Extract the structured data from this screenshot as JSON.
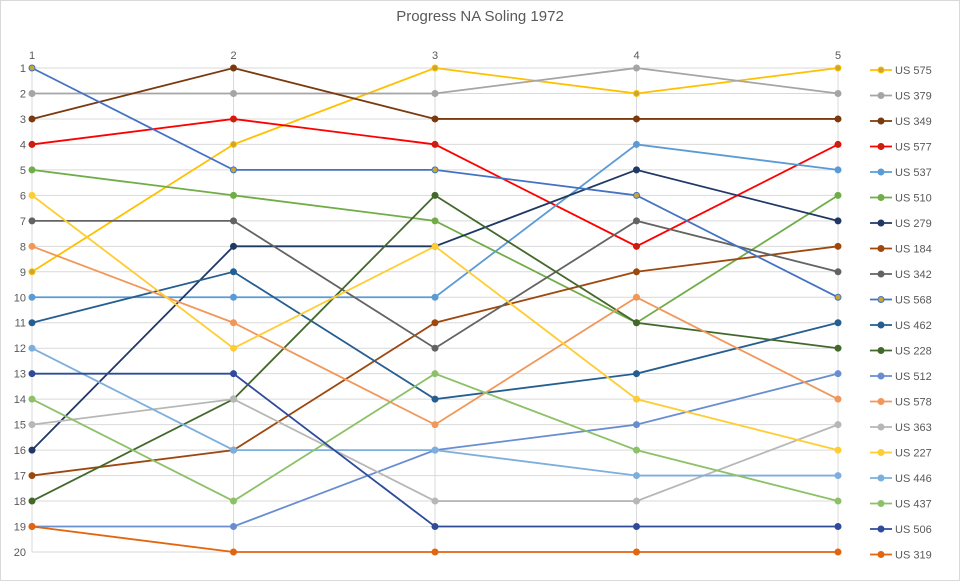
{
  "chart_data": {
    "type": "line",
    "title": "Progress NA Soling 1972",
    "x": [
      "1",
      "2",
      "3",
      "4",
      "5"
    ],
    "xlabel": "",
    "ylabel": "",
    "ylim": [
      1,
      20
    ],
    "y_reversed": true,
    "y_ticks": [
      "1",
      "2",
      "3",
      "4",
      "5",
      "6",
      "7",
      "8",
      "9",
      "10",
      "11",
      "12",
      "13",
      "14",
      "15",
      "16",
      "17",
      "18",
      "19",
      "20"
    ],
    "grid": true,
    "legend_position": "right",
    "series": [
      {
        "name": "US 575",
        "color": "#FFC000",
        "marker": "#C9A62E",
        "values": [
          9,
          4,
          1,
          2,
          1
        ]
      },
      {
        "name": "US 379",
        "color": "#A5A5A5",
        "marker": "#A5A5A5",
        "values": [
          2,
          2,
          2,
          1,
          2
        ]
      },
      {
        "name": "US 349",
        "color": "#7B3A0E",
        "marker": "#7B3A0E",
        "values": [
          3,
          1,
          3,
          3,
          3
        ]
      },
      {
        "name": "US 577",
        "color": "#FF0000",
        "marker": "#B22B12",
        "values": [
          4,
          3,
          4,
          8,
          4
        ]
      },
      {
        "name": "US 537",
        "color": "#5B9BD5",
        "marker": "#5B9BD5",
        "values": [
          10,
          10,
          10,
          4,
          5
        ]
      },
      {
        "name": "US 510",
        "color": "#70AD47",
        "marker": "#70AD47",
        "values": [
          5,
          6,
          7,
          11,
          6
        ]
      },
      {
        "name": "US 279",
        "color": "#203864",
        "marker": "#203864",
        "values": [
          16,
          8,
          8,
          5,
          7
        ]
      },
      {
        "name": "US 184",
        "color": "#9E480E",
        "marker": "#9E480E",
        "values": [
          17,
          16,
          11,
          9,
          8
        ]
      },
      {
        "name": "US 342",
        "color": "#636363",
        "marker": "#636363",
        "values": [
          7,
          7,
          12,
          7,
          9
        ]
      },
      {
        "name": "US 568",
        "color": "#4472C4",
        "marker": "#C9A62E",
        "values": [
          1,
          5,
          5,
          6,
          10
        ]
      },
      {
        "name": "US 462",
        "color": "#255E91",
        "marker": "#255E91",
        "values": [
          11,
          9,
          14,
          13,
          11
        ]
      },
      {
        "name": "US 228",
        "color": "#43682B",
        "marker": "#43682B",
        "values": [
          18,
          14,
          6,
          11,
          12
        ]
      },
      {
        "name": "US 512",
        "color": "#698ED0",
        "marker": "#698ED0",
        "values": [
          19,
          19,
          16,
          15,
          13
        ]
      },
      {
        "name": "US 578",
        "color": "#F1975A",
        "marker": "#F1975A",
        "values": [
          8,
          11,
          15,
          10,
          14
        ]
      },
      {
        "name": "US 363",
        "color": "#B7B7B7",
        "marker": "#B7B7B7",
        "values": [
          15,
          14,
          18,
          18,
          15
        ]
      },
      {
        "name": "US 227",
        "color": "#FFCD33",
        "marker": "#FFCD33",
        "values": [
          6,
          12,
          8,
          14,
          16
        ]
      },
      {
        "name": "US 446",
        "color": "#7CAFDD",
        "marker": "#7CAFDD",
        "values": [
          12,
          16,
          16,
          17,
          17
        ]
      },
      {
        "name": "US 437",
        "color": "#8CC168",
        "marker": "#8CC168",
        "values": [
          14,
          18,
          13,
          16,
          18
        ]
      },
      {
        "name": "US 506",
        "color": "#2F4B9A",
        "marker": "#2F4B9A",
        "values": [
          13,
          13,
          19,
          19,
          19
        ]
      },
      {
        "name": "US 319",
        "color": "#E2650F",
        "marker": "#E2650F",
        "values": [
          19,
          20,
          20,
          20,
          20
        ]
      }
    ]
  }
}
